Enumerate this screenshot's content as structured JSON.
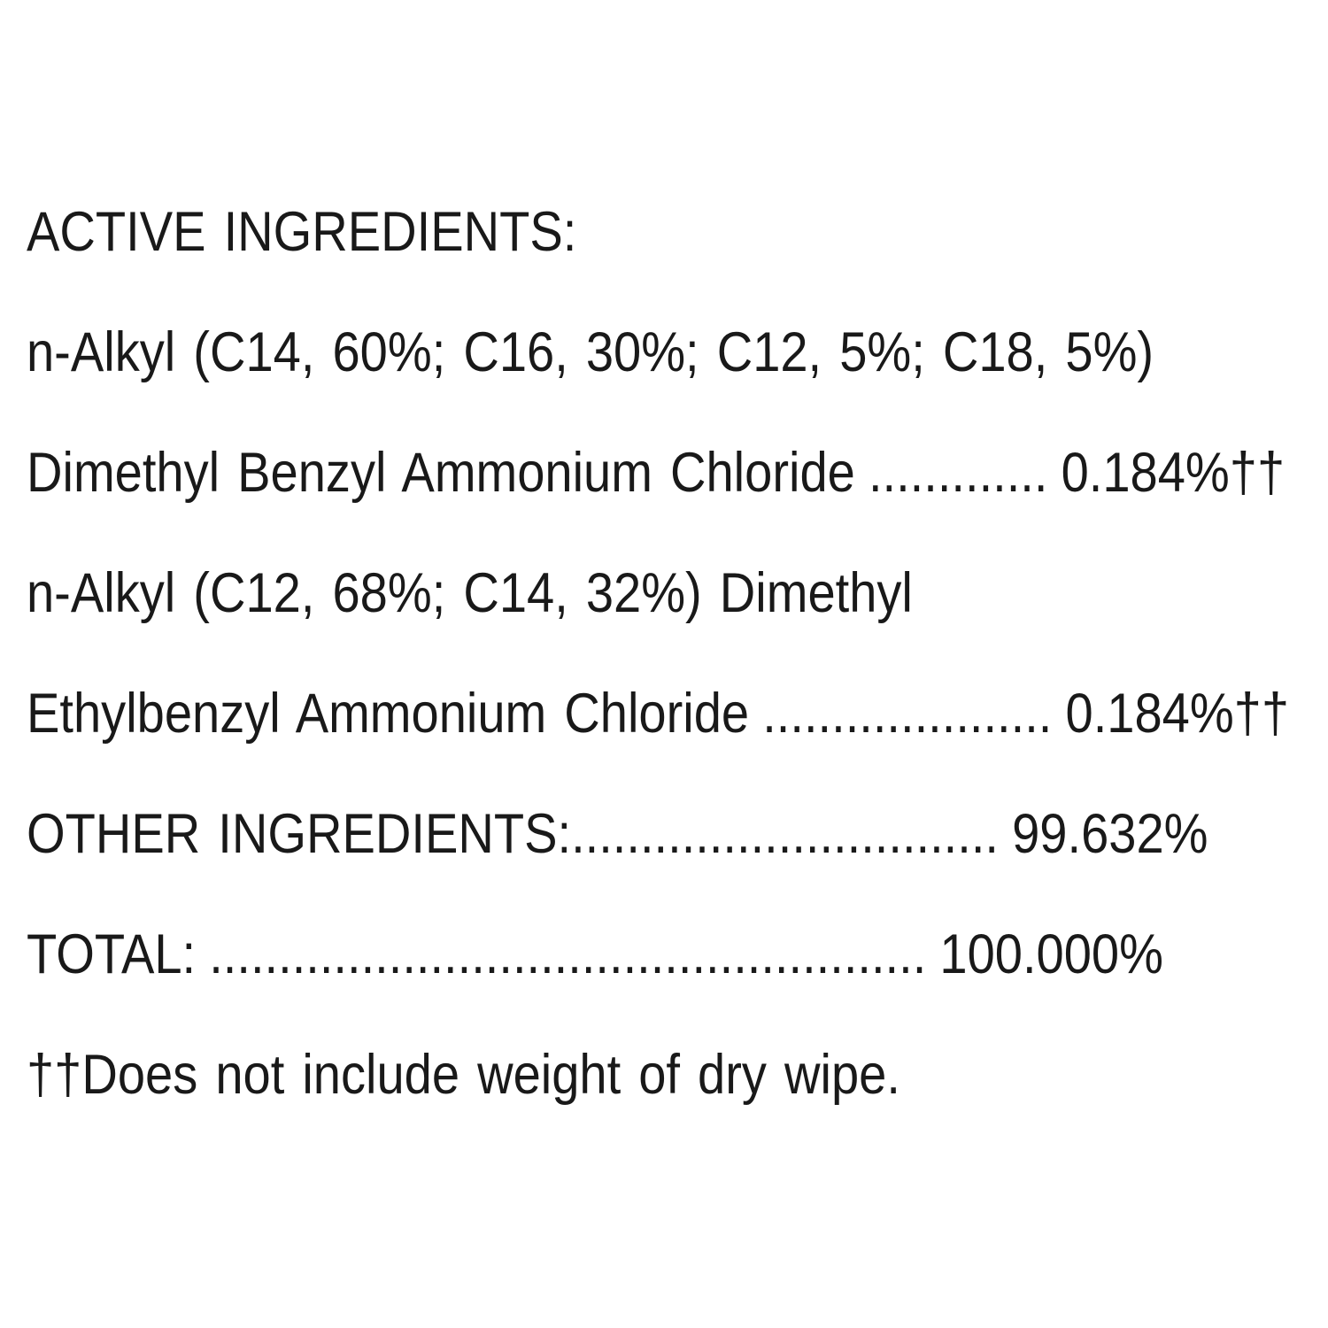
{
  "page": {
    "background_color": "#ffffff",
    "text_color": "#191919"
  },
  "ingredients_label": {
    "heading": "ACTIVE INGREDIENTS:",
    "active_ingredient_1": {
      "line_1": "n-Alkyl (C14, 60%; C16, 30%; C12, 5%; C18, 5%)",
      "line_2_name": "Dimethyl Benzyl Ammonium Chloride",
      "line_2_dots": ".............",
      "line_2_value": "0.184%††"
    },
    "active_ingredient_2": {
      "line_1": "n-Alkyl (C12, 68%; C14, 32%) Dimethyl",
      "line_2_name": "Ethylbenzyl Ammonium Chloride",
      "line_2_dots": ".....................",
      "line_2_value": "0.184%††"
    },
    "other_ingredients": {
      "name": "OTHER INGREDIENTS:",
      "dots": "...............................",
      "value": "99.632%"
    },
    "total": {
      "name": "TOTAL:",
      "dots": "....................................................",
      "value": "100.000%"
    },
    "footnote": "††Does not include weight of dry wipe."
  }
}
